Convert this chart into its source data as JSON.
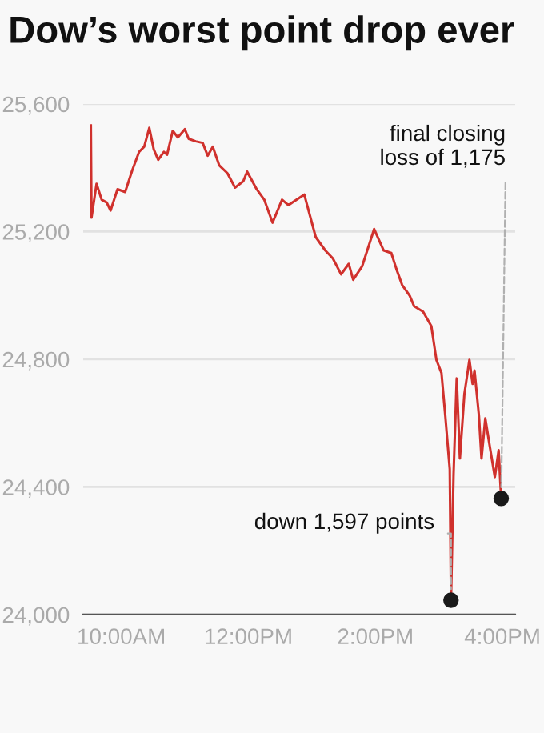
{
  "chart_data": {
    "type": "line",
    "title": "Dow’s worst point drop ever",
    "x": [
      9.52,
      9.53,
      9.61,
      9.69,
      9.77,
      9.83,
      9.94,
      10.06,
      10.17,
      10.28,
      10.36,
      10.44,
      10.51,
      10.58,
      10.67,
      10.72,
      10.81,
      10.89,
      11.0,
      11.06,
      11.17,
      11.28,
      11.36,
      11.44,
      11.54,
      11.67,
      11.79,
      11.92,
      11.98,
      12.13,
      12.25,
      12.38,
      12.53,
      12.63,
      12.88,
      13.06,
      13.21,
      13.33,
      13.46,
      13.58,
      13.65,
      13.79,
      13.98,
      14.13,
      14.25,
      14.33,
      14.42,
      14.54,
      14.61,
      14.75,
      14.88,
      14.96,
      15.04,
      15.1,
      15.17,
      15.19,
      15.23,
      15.28,
      15.33,
      15.4,
      15.48,
      15.53,
      15.56,
      15.63,
      15.67,
      15.73,
      15.79,
      15.88,
      15.94,
      15.98
    ],
    "series": [
      {
        "color": "#d0312d",
        "values": [
          25533,
          25244,
          25350,
          25300,
          25291,
          25266,
          25333,
          25324,
          25391,
          25450,
          25466,
          25525,
          25458,
          25425,
          25450,
          25441,
          25516,
          25495,
          25521,
          25491,
          25483,
          25478,
          25438,
          25466,
          25408,
          25383,
          25338,
          25358,
          25388,
          25333,
          25300,
          25228,
          25300,
          25283,
          25316,
          25183,
          25141,
          25116,
          25066,
          25099,
          25049,
          25091,
          25208,
          25141,
          25133,
          25083,
          25033,
          24999,
          24966,
          24949,
          24904,
          24798,
          24757,
          24623,
          24456,
          24045,
          24439,
          24740,
          24489,
          24690,
          24798,
          24723,
          24765,
          24623,
          24489,
          24615,
          24540,
          24431,
          24515,
          24364
        ]
      }
    ],
    "xlim": [
      9.4,
      16.2
    ],
    "ylim": [
      24000,
      25600
    ],
    "xticks": [
      {
        "value": 10,
        "label": "10:00AM"
      },
      {
        "value": 12,
        "label": "12:00PM"
      },
      {
        "value": 14,
        "label": "2:00PM"
      },
      {
        "value": 16,
        "label": "4:00PM"
      }
    ],
    "yticks": [
      {
        "value": 24000,
        "label": "24,000"
      },
      {
        "value": 24400,
        "label": "24,400"
      },
      {
        "value": 24800,
        "label": "24,800"
      },
      {
        "value": 25200,
        "label": "25,200"
      },
      {
        "value": 25600,
        "label": "25,600"
      }
    ],
    "grid": "y",
    "marker": "none",
    "line_style": "solid",
    "annotations": [
      {
        "text": "down 1,597 points",
        "x": 15.19,
        "y": 24045
      },
      {
        "text": "final closing\nloss of 1,175",
        "x": 15.98,
        "y": 24364
      }
    ]
  }
}
